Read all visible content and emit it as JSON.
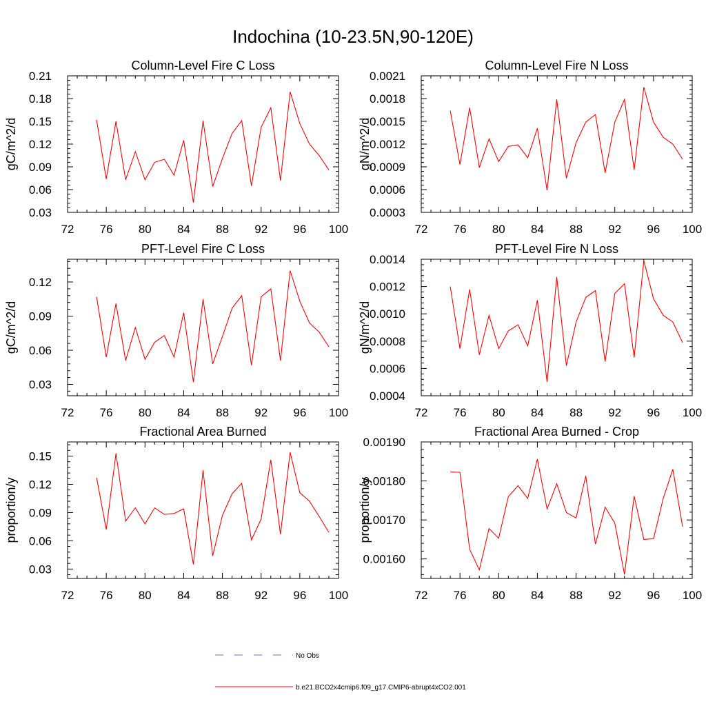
{
  "figure": {
    "title": "Indochina (10-23.5N,90-120E)"
  },
  "legend": {
    "items": [
      {
        "label": "No Obs",
        "color": "#6a6ad8",
        "dash": true
      },
      {
        "label": "b.e21.BCO2x4cmip6.f09_g17.CMIP6-abrupt4xCO2.001",
        "color": "#ff0000",
        "dash": false
      }
    ]
  },
  "chart_data": [
    {
      "type": "line",
      "title": "Column-Level Fire C Loss",
      "ylabel": "gC/m^2/d",
      "xlim": [
        72,
        100
      ],
      "ylim": [
        0.03,
        0.21
      ],
      "xticks": [
        "72",
        "76",
        "80",
        "84",
        "88",
        "92",
        "96",
        "100"
      ],
      "yticks": [
        "0.03",
        "0.06",
        "0.09",
        "0.12",
        "0.15",
        "0.18",
        "0.21"
      ],
      "x": [
        75,
        76,
        77,
        78,
        79,
        80,
        81,
        82,
        83,
        84,
        85,
        86,
        87,
        88,
        89,
        90,
        91,
        92,
        93,
        94,
        95,
        96,
        97,
        98,
        99
      ],
      "series": [
        {
          "values": [
            0.152,
            0.074,
            0.15,
            0.073,
            0.11,
            0.073,
            0.096,
            0.1,
            0.079,
            0.125,
            0.043,
            0.151,
            0.064,
            0.101,
            0.134,
            0.151,
            0.065,
            0.142,
            0.168,
            0.072,
            0.189,
            0.147,
            0.12,
            0.105,
            0.086
          ],
          "color": "#ff0000"
        }
      ]
    },
    {
      "type": "line",
      "title": "Column-Level Fire N Loss",
      "ylabel": "gN/m^2/d",
      "xlim": [
        72,
        100
      ],
      "ylim": [
        0.0003,
        0.0021
      ],
      "xticks": [
        "72",
        "76",
        "80",
        "84",
        "88",
        "92",
        "96",
        "100"
      ],
      "yticks": [
        "0.0003",
        "0.0006",
        "0.0009",
        "0.0012",
        "0.0015",
        "0.0018",
        "0.0021"
      ],
      "x": [
        75,
        76,
        77,
        78,
        79,
        80,
        81,
        82,
        83,
        84,
        85,
        86,
        87,
        88,
        89,
        90,
        91,
        92,
        93,
        94,
        95,
        96,
        97,
        98,
        99
      ],
      "series": [
        {
          "values": [
            0.00164,
            0.00093,
            0.00168,
            0.00089,
            0.00127,
            0.00097,
            0.00117,
            0.00119,
            0.00102,
            0.00141,
            0.00059,
            0.00179,
            0.00075,
            0.00122,
            0.00149,
            0.00159,
            0.00082,
            0.00149,
            0.00179,
            0.00086,
            0.00195,
            0.00149,
            0.00129,
            0.0012,
            0.001
          ],
          "color": "#ff0000"
        }
      ]
    },
    {
      "type": "line",
      "title": "PFT-Level Fire C Loss",
      "ylabel": "gC/m^2/d",
      "xlim": [
        72,
        100
      ],
      "ylim": [
        0.02,
        0.14
      ],
      "xticks": [
        "72",
        "76",
        "80",
        "84",
        "88",
        "92",
        "96",
        "100"
      ],
      "yticks": [
        "0.03",
        "0.06",
        "0.09",
        "0.12"
      ],
      "x": [
        75,
        76,
        77,
        78,
        79,
        80,
        81,
        82,
        83,
        84,
        85,
        86,
        87,
        88,
        89,
        90,
        91,
        92,
        93,
        94,
        95,
        96,
        97,
        98,
        99
      ],
      "series": [
        {
          "values": [
            0.107,
            0.054,
            0.101,
            0.051,
            0.08,
            0.052,
            0.067,
            0.073,
            0.054,
            0.093,
            0.032,
            0.105,
            0.048,
            0.072,
            0.097,
            0.108,
            0.047,
            0.107,
            0.114,
            0.051,
            0.13,
            0.103,
            0.084,
            0.076,
            0.063
          ],
          "color": "#ff0000"
        }
      ]
    },
    {
      "type": "line",
      "title": "PFT-Level Fire N Loss",
      "ylabel": "gN/m^2/d",
      "xlim": [
        72,
        100
      ],
      "ylim": [
        0.0004,
        0.0014
      ],
      "xticks": [
        "72",
        "76",
        "80",
        "84",
        "88",
        "92",
        "96",
        "100"
      ],
      "yticks": [
        "0.0004",
        "0.0006",
        "0.0008",
        "0.0010",
        "0.0012",
        "0.0014"
      ],
      "x": [
        75,
        76,
        77,
        78,
        79,
        80,
        81,
        82,
        83,
        84,
        85,
        86,
        87,
        88,
        89,
        90,
        91,
        92,
        93,
        94,
        95,
        96,
        97,
        98,
        99
      ],
      "series": [
        {
          "values": [
            0.0012,
            0.000745,
            0.00118,
            0.0007,
            0.00099,
            0.000745,
            0.000875,
            0.00092,
            0.000765,
            0.0011,
            0.0005,
            0.00127,
            0.00062,
            0.00094,
            0.00112,
            0.00117,
            0.00065,
            0.00115,
            0.00122,
            0.00068,
            0.00139,
            0.00111,
            0.00099,
            0.00094,
            0.00079
          ],
          "color": "#ff0000"
        }
      ]
    },
    {
      "type": "line",
      "title": "Fractional Area Burned",
      "ylabel": "proportion/y",
      "xlim": [
        72,
        100
      ],
      "ylim": [
        0.02,
        0.165
      ],
      "xticks": [
        "72",
        "76",
        "80",
        "84",
        "88",
        "92",
        "96",
        "100"
      ],
      "yticks": [
        "0.03",
        "0.06",
        "0.09",
        "0.12",
        "0.15"
      ],
      "x": [
        75,
        76,
        77,
        78,
        79,
        80,
        81,
        82,
        83,
        84,
        85,
        86,
        87,
        88,
        89,
        90,
        91,
        92,
        93,
        94,
        95,
        96,
        97,
        98,
        99
      ],
      "series": [
        {
          "values": [
            0.127,
            0.072,
            0.153,
            0.081,
            0.095,
            0.078,
            0.095,
            0.088,
            0.089,
            0.094,
            0.035,
            0.135,
            0.044,
            0.087,
            0.11,
            0.121,
            0.061,
            0.083,
            0.146,
            0.067,
            0.154,
            0.111,
            0.102,
            0.086,
            0.069
          ],
          "color": "#ff0000"
        }
      ]
    },
    {
      "type": "line",
      "title": "Fractional Area Burned - Crop",
      "ylabel": "proportion/y",
      "xlim": [
        72,
        100
      ],
      "ylim": [
        0.00155,
        0.0019
      ],
      "xticks": [
        "72",
        "76",
        "80",
        "84",
        "88",
        "92",
        "96",
        "100"
      ],
      "yticks": [
        "0.00160",
        "0.00170",
        "0.00180",
        "0.00190"
      ],
      "x": [
        75,
        76,
        77,
        78,
        79,
        80,
        81,
        82,
        83,
        84,
        85,
        86,
        87,
        88,
        89,
        90,
        91,
        92,
        93,
        94,
        95,
        96,
        97,
        98,
        99
      ],
      "series": [
        {
          "values": [
            0.001823,
            0.001822,
            0.001625,
            0.001572,
            0.001678,
            0.001653,
            0.00176,
            0.001788,
            0.001755,
            0.001856,
            0.001728,
            0.001793,
            0.001719,
            0.001705,
            0.001813,
            0.001638,
            0.001733,
            0.001692,
            0.00156,
            0.001761,
            0.00165,
            0.001652,
            0.001755,
            0.00183,
            0.001683
          ],
          "color": "#ff0000"
        }
      ]
    }
  ]
}
